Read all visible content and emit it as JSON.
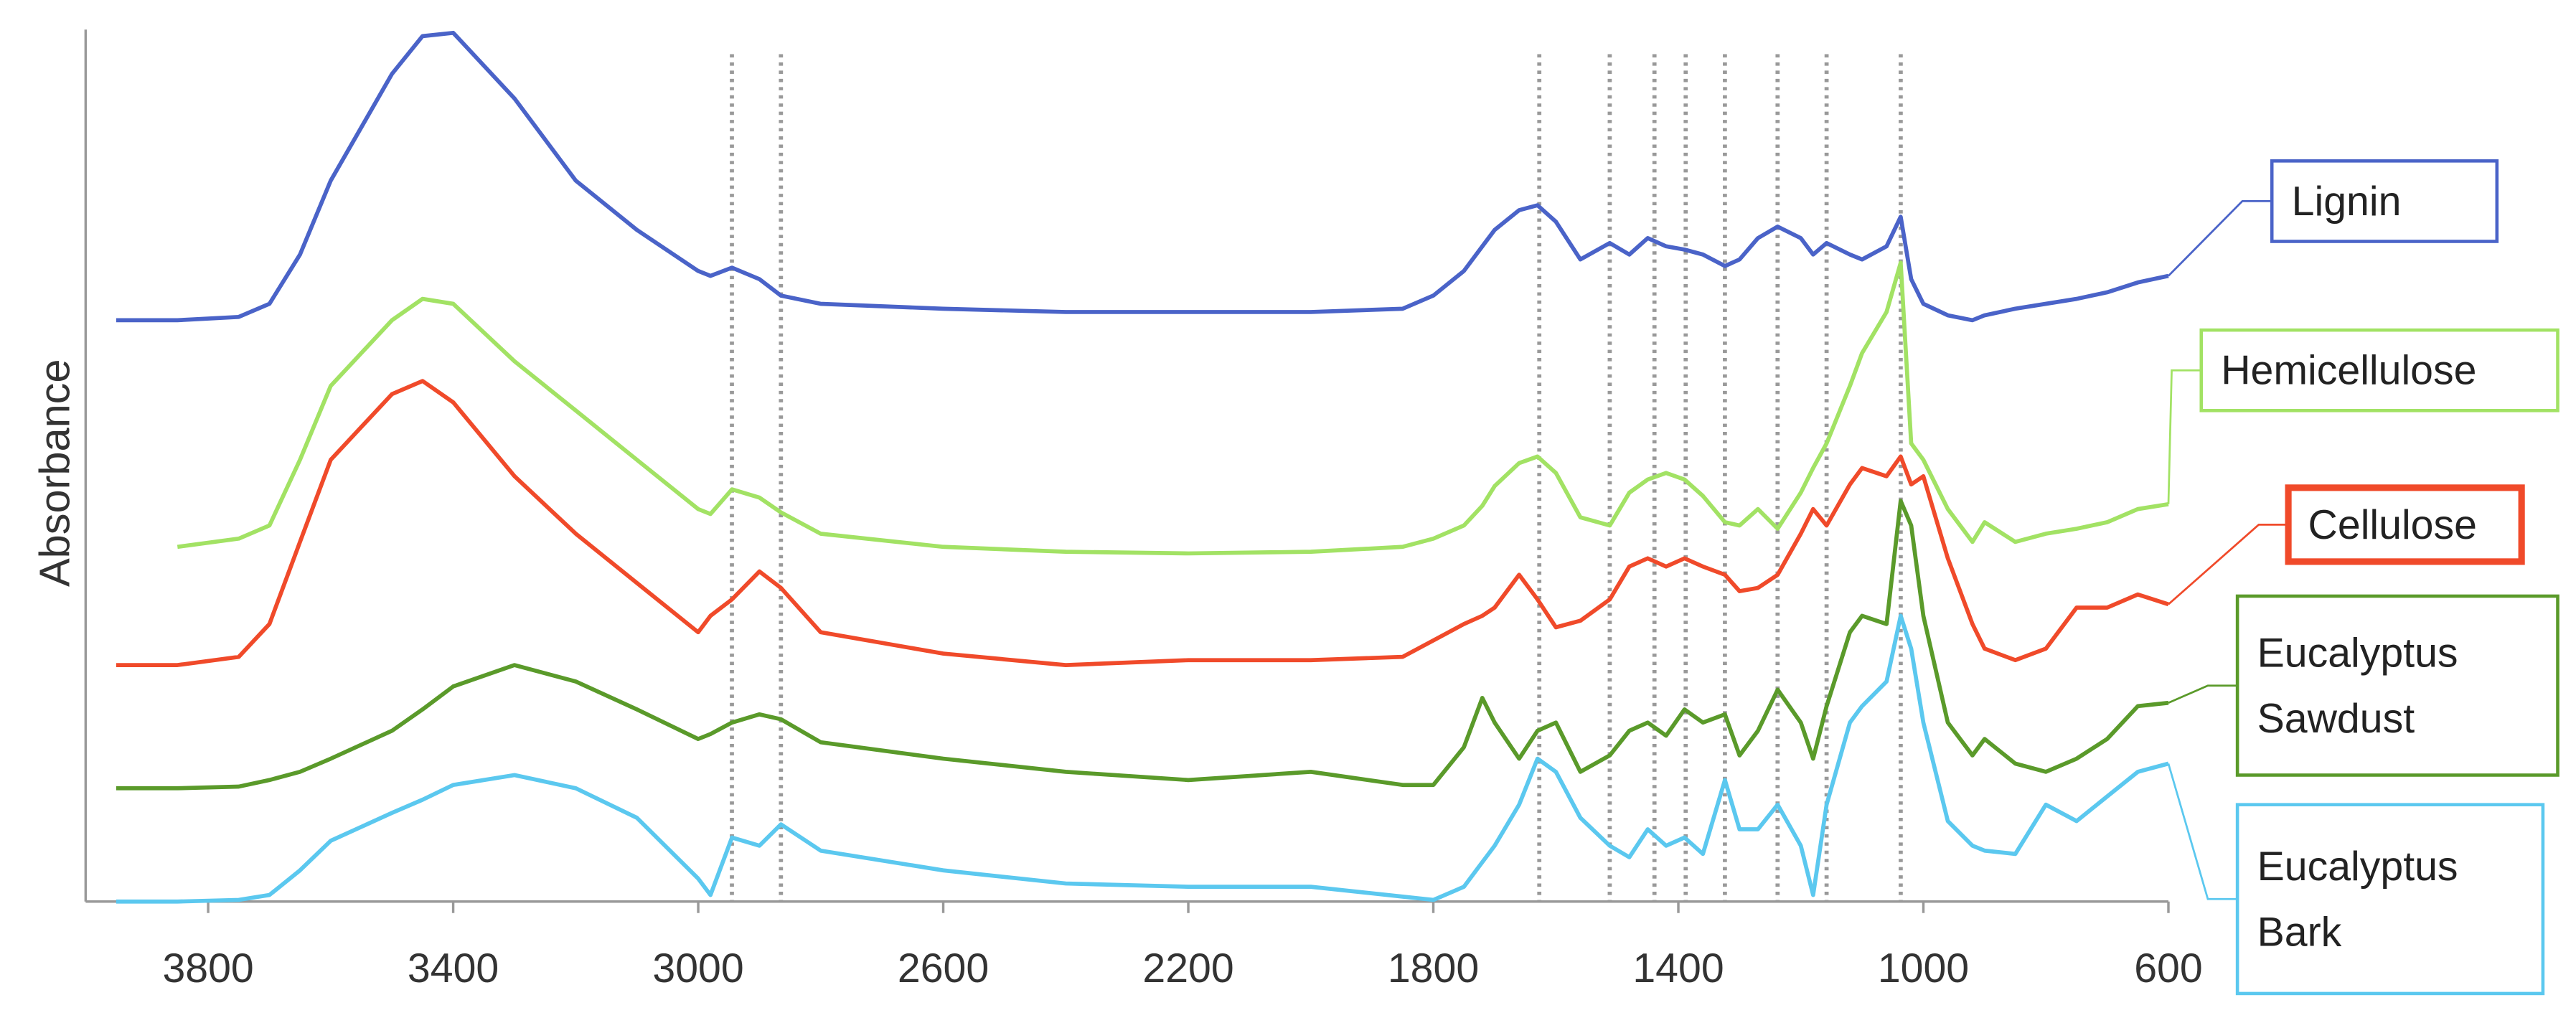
{
  "chart_data": {
    "type": "line",
    "y_label": "Absorbance",
    "xlim": [
      4000,
      600
    ],
    "xticks": [
      3800,
      3400,
      3000,
      2600,
      2200,
      1800,
      1400,
      1000,
      600
    ],
    "ylim": [
      0,
      531
    ],
    "reference_lines": [
      2945,
      2865,
      1627,
      1512,
      1439,
      1388,
      1324,
      1238,
      1158,
      1037
    ],
    "x": [
      3950,
      3850,
      3750,
      3700,
      3650,
      3600,
      3500,
      3450,
      3400,
      3300,
      3200,
      3100,
      3000,
      2980,
      2945,
      2900,
      2865,
      2800,
      2600,
      2400,
      2200,
      2000,
      1850,
      1800,
      1750,
      1720,
      1700,
      1660,
      1630,
      1600,
      1560,
      1512,
      1480,
      1450,
      1420,
      1390,
      1360,
      1324,
      1300,
      1270,
      1238,
      1200,
      1180,
      1158,
      1120,
      1100,
      1060,
      1037,
      1020,
      1000,
      960,
      920,
      900,
      850,
      800,
      750,
      700,
      650,
      600
    ],
    "series": [
      {
        "name": "Lignin",
        "color": "#4a63c8",
        "values": [
          354,
          354,
          356,
          364,
          394,
          439,
          504,
          527,
          529,
          489,
          439,
          409,
          384,
          381,
          386,
          379,
          369,
          364,
          361,
          359,
          359,
          359,
          361,
          369,
          384,
          399,
          409,
          421,
          424,
          414,
          391,
          401,
          394,
          404,
          399,
          397,
          394,
          387,
          391,
          404,
          411,
          404,
          394,
          401,
          394,
          391,
          399,
          417,
          379,
          364,
          357,
          354,
          357,
          361,
          364,
          367,
          371,
          377,
          381
        ]
      },
      {
        "name": "Hemicellulose",
        "color": "#a2e264",
        "values": [
          null,
          216,
          221,
          229,
          269,
          314,
          354,
          367,
          364,
          329,
          299,
          269,
          239,
          236,
          251,
          246,
          237,
          224,
          216,
          213,
          212,
          213,
          216,
          221,
          229,
          241,
          253,
          267,
          271,
          261,
          234,
          229,
          249,
          257,
          261,
          257,
          247,
          231,
          229,
          239,
          227,
          249,
          264,
          279,
          314,
          334,
          359,
          389,
          279,
          269,
          239,
          219,
          231,
          219,
          224,
          227,
          231,
          239,
          242
        ]
      },
      {
        "name": "Cellulose",
        "color": "#f04a2a",
        "values": [
          144,
          144,
          149,
          169,
          219,
          269,
          309,
          317,
          304,
          259,
          224,
          194,
          164,
          174,
          184,
          201,
          191,
          164,
          151,
          144,
          147,
          147,
          149,
          159,
          169,
          174,
          179,
          199,
          184,
          167,
          171,
          184,
          204,
          209,
          204,
          209,
          204,
          199,
          189,
          191,
          199,
          224,
          239,
          229,
          254,
          264,
          259,
          271,
          254,
          259,
          209,
          169,
          154,
          147,
          154,
          179,
          179,
          187,
          181
        ]
      },
      {
        "name": "Eucalyptus Sawdust",
        "color": "#5a9a2a",
        "values": [
          69,
          69,
          70,
          74,
          79,
          87,
          104,
          117,
          131,
          144,
          134,
          117,
          99,
          102,
          109,
          114,
          111,
          97,
          87,
          79,
          74,
          79,
          71,
          71,
          94,
          124,
          109,
          87,
          104,
          109,
          79,
          89,
          104,
          109,
          101,
          117,
          109,
          114,
          89,
          104,
          129,
          109,
          87,
          119,
          164,
          174,
          169,
          244,
          229,
          174,
          109,
          89,
          99,
          84,
          79,
          87,
          99,
          119,
          121
        ]
      },
      {
        "name": "Eucalyptus Bark",
        "color": "#5bc8ef",
        "values": [
          0,
          0,
          1,
          4,
          19,
          37,
          54,
          62,
          71,
          77,
          69,
          51,
          14,
          4,
          39,
          34,
          47,
          31,
          19,
          11,
          9,
          9,
          3,
          1,
          9,
          24,
          34,
          59,
          87,
          79,
          51,
          34,
          27,
          44,
          34,
          39,
          29,
          74,
          44,
          44,
          59,
          34,
          4,
          59,
          109,
          119,
          134,
          174,
          154,
          109,
          49,
          34,
          31,
          29,
          59,
          49,
          64,
          79,
          84
        ]
      }
    ]
  }
}
